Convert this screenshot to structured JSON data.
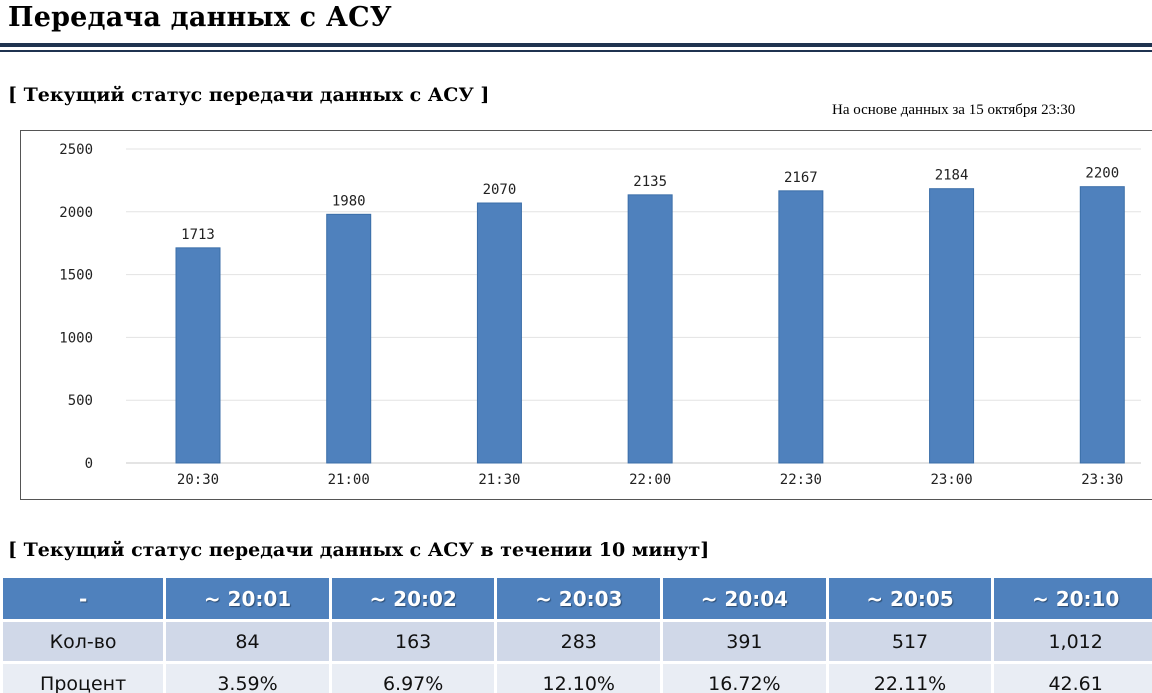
{
  "page": {
    "title": "Передача данных с АСУ"
  },
  "section_current": {
    "heading": "[ Текущий статус передачи данных с АСУ ]",
    "basis_note": "На основе данных за 15 октября 23:30"
  },
  "chart_data": {
    "type": "bar",
    "categories": [
      "20:30",
      "21:00",
      "21:30",
      "22:00",
      "22:30",
      "23:00",
      "23:30"
    ],
    "values": [
      1713,
      1980,
      2070,
      2135,
      2167,
      2184,
      2200
    ],
    "yticks": [
      0,
      500,
      1000,
      1500,
      2000,
      2500
    ],
    "ylim": [
      0,
      2500
    ],
    "grid": true,
    "bar_color": "#4f81bd",
    "data_labels": true
  },
  "section_10min": {
    "heading": "[ Текущий статус передачи данных с АСУ в течении 10 минут]",
    "columns": [
      "-",
      "~ 20:01",
      "~ 20:02",
      "~ 20:03",
      "~ 20:04",
      "~ 20:05",
      "~ 20:10"
    ],
    "rows": [
      {
        "label": "Кол-во",
        "values": [
          "84",
          "163",
          "283",
          "391",
          "517",
          "1,012"
        ]
      },
      {
        "label": "Процент",
        "values": [
          "3.59%",
          "6.97%",
          "12.10%",
          "16.72%",
          "22.11%",
          "42.61"
        ]
      }
    ],
    "header_color": "#4f81bd",
    "row_colors": [
      "#d0d8e8",
      "#e9edf4"
    ]
  }
}
